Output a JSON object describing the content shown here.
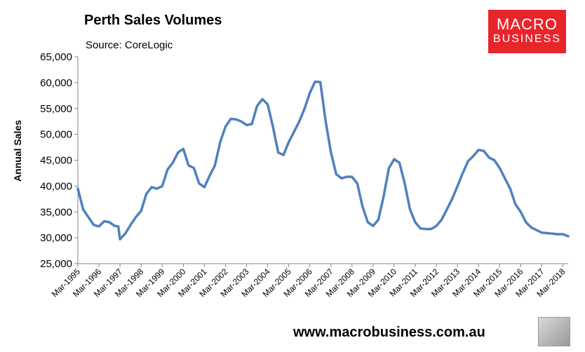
{
  "header": {
    "title": "Perth Sales Volumes",
    "source": "Source: CoreLogic"
  },
  "logo": {
    "line1": "MACRO",
    "line2": "BUSINESS"
  },
  "footer": {
    "url": "www.macrobusiness.com.au"
  },
  "colors": {
    "line": "#4f81bd",
    "logo_bg": "#e8252b"
  },
  "chart_data": {
    "type": "line",
    "title": "Perth Sales Volumes",
    "ylabel": "Annual Sales",
    "xlabel": "",
    "ylim": [
      25000,
      65000
    ],
    "yticks": [
      25000,
      30000,
      35000,
      40000,
      45000,
      50000,
      55000,
      60000,
      65000
    ],
    "ytick_labels": [
      "25,000",
      "30,000",
      "35,000",
      "40,000",
      "45,000",
      "50,000",
      "55,000",
      "60,000",
      "65,000"
    ],
    "xtick_labels": [
      "Mar-1995",
      "Mar-1996",
      "Mar-1997",
      "Mar-1998",
      "Mar-1999",
      "Mar-2000",
      "Mar-2001",
      "Mar-2002",
      "Mar-2003",
      "Mar-2004",
      "Mar-2005",
      "Mar-2006",
      "Mar-2007",
      "Mar-2008",
      "Mar-2009",
      "Mar-2010",
      "Mar-2011",
      "Mar-2012",
      "Mar-2013",
      "Mar-2014",
      "Mar-2015",
      "Mar-2016",
      "Mar-2017",
      "Mar-2018"
    ],
    "grid": false,
    "series": [
      {
        "x": [
          "Mar-1995",
          "Jun-1995",
          "Sep-1995",
          "Dec-1995",
          "Mar-1996",
          "Jun-1996",
          "Sep-1996",
          "Dec-1996",
          "Feb-1997",
          "Mar-1997",
          "Jun-1997",
          "Sep-1997",
          "Dec-1997",
          "Mar-1998",
          "Jun-1998",
          "Sep-1998",
          "Dec-1998",
          "Mar-1999",
          "Jun-1999",
          "Sep-1999",
          "Dec-1999",
          "Mar-2000",
          "Jun-2000",
          "Sep-2000",
          "Dec-2000",
          "Mar-2001",
          "Jun-2001",
          "Sep-2001",
          "Dec-2001",
          "Mar-2002",
          "Jun-2002",
          "Sep-2002",
          "Dec-2002",
          "Mar-2003",
          "Jun-2003",
          "Sep-2003",
          "Dec-2003",
          "Mar-2004",
          "Jun-2004",
          "Sep-2004",
          "Dec-2004",
          "Mar-2005",
          "Jun-2005",
          "Sep-2005",
          "Dec-2005",
          "Mar-2006",
          "Jun-2006",
          "Sep-2006",
          "Dec-2006",
          "Mar-2007",
          "Jun-2007",
          "Sep-2007",
          "Dec-2007",
          "Mar-2008",
          "Jun-2008",
          "Sep-2008",
          "Dec-2008",
          "Mar-2009",
          "Jun-2009",
          "Sep-2009",
          "Dec-2009",
          "Mar-2010",
          "Jun-2010",
          "Sep-2010",
          "Dec-2010",
          "Mar-2011",
          "Jun-2011",
          "Sep-2011",
          "Dec-2011",
          "Mar-2012",
          "Jun-2012",
          "Sep-2012",
          "Dec-2012",
          "Mar-2013",
          "Jun-2013",
          "Sep-2013",
          "Dec-2013",
          "Mar-2014",
          "Jun-2014",
          "Sep-2014",
          "Dec-2014",
          "Mar-2015",
          "Jun-2015",
          "Sep-2015",
          "Dec-2015",
          "Mar-2016",
          "Jun-2016",
          "Sep-2016",
          "Dec-2016",
          "Mar-2017",
          "Jun-2017",
          "Sep-2017",
          "Dec-2017",
          "Mar-2018",
          "Jun-2018"
        ],
        "values": [
          39500,
          35500,
          34000,
          32500,
          32200,
          33200,
          33000,
          32300,
          32200,
          29700,
          30800,
          32500,
          34000,
          35200,
          38500,
          39800,
          39500,
          40000,
          43200,
          44500,
          46500,
          47200,
          44000,
          43500,
          40500,
          39800,
          42000,
          44000,
          48500,
          51500,
          53000,
          52900,
          52500,
          51800,
          52000,
          55500,
          56800,
          55800,
          51500,
          46500,
          46000,
          48500,
          50500,
          52500,
          55000,
          58000,
          60200,
          60100,
          52500,
          46500,
          42300,
          41500,
          41800,
          41800,
          40500,
          36000,
          33000,
          32300,
          33500,
          38000,
          43500,
          45200,
          44500,
          40500,
          35500,
          33000,
          31800,
          31700,
          31700,
          32300,
          33500,
          35500,
          37500,
          40000,
          42500,
          44800,
          45800,
          47000,
          46800,
          45500,
          45000,
          43500,
          41500,
          39500,
          36500,
          35000,
          33000,
          32000,
          31500,
          31000,
          30900,
          30800,
          30700,
          30700,
          30300
        ]
      }
    ]
  }
}
